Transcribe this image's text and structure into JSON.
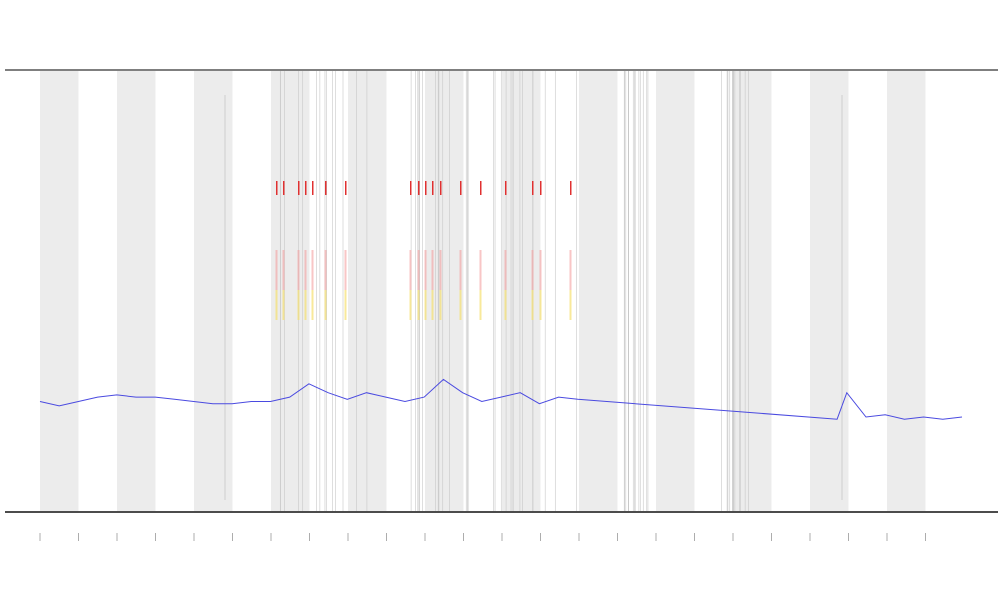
{
  "chart_data": {
    "type": "line",
    "x": [
      0,
      0.5,
      1,
      1.5,
      2,
      2.5,
      3,
      3.5,
      4,
      4.5,
      5,
      5.5,
      6,
      6.5,
      7,
      7.5,
      8,
      8.5,
      9,
      9.5,
      10,
      10.5,
      11,
      11.5,
      12,
      12.5,
      13,
      13.5,
      14,
      20.75,
      21,
      21.5,
      22,
      22.5,
      23,
      23.5,
      24
    ],
    "series": [
      {
        "color": "#4a4ae0",
        "values": [
          25,
          24,
          25,
          26,
          26.5,
          26,
          26,
          25.5,
          25,
          24.5,
          24.5,
          25,
          25,
          26,
          29,
          27,
          25.5,
          27,
          26,
          25,
          26,
          30,
          27,
          25,
          26,
          27,
          24.5,
          26,
          25.5,
          21,
          27,
          21.5,
          22,
          21,
          21.5,
          21,
          21.5
        ]
      }
    ],
    "xlim": [
      0,
      24
    ],
    "ylim": [
      0,
      100
    ]
  }
}
